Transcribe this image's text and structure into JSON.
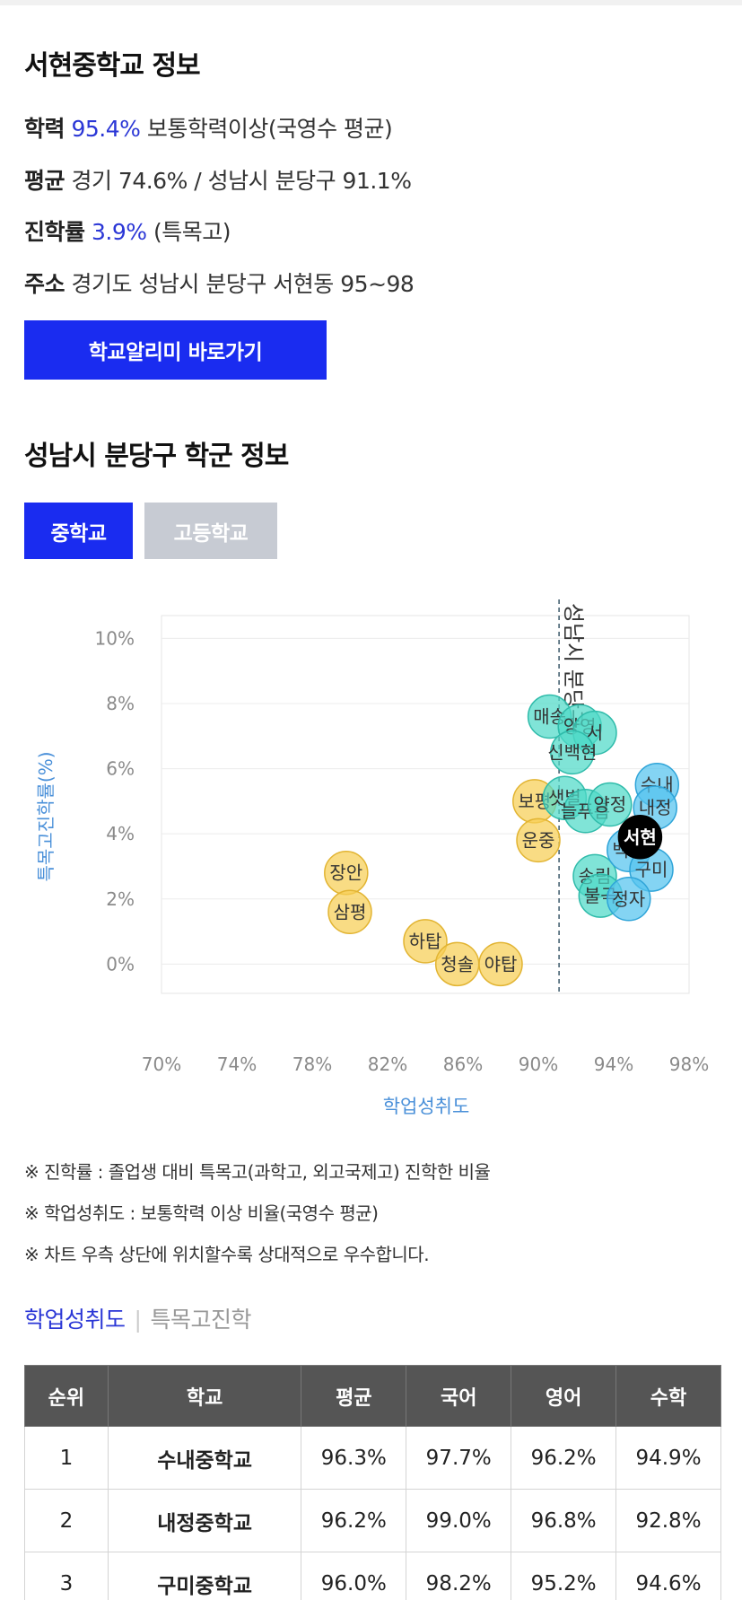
{
  "school_info": {
    "title": "서현중학교 정보",
    "ability": {
      "label": "학력",
      "value": "95.4%",
      "desc": "보통학력이상(국영수 평균)"
    },
    "average": {
      "label": "평균",
      "desc": "경기 74.6% / 성남시 분당구 91.1%"
    },
    "advance": {
      "label": "진학률",
      "value": "3.9%",
      "desc": "(특목고)"
    },
    "address": {
      "label": "주소",
      "desc": "경기도 성남시 분당구 서현동 95~98"
    },
    "button": "학교알리미 바로가기"
  },
  "district": {
    "title": "성남시 분당구 학군 정보",
    "tabs": [
      "중학교",
      "고등학교"
    ],
    "active_tab": "중학교"
  },
  "colors": {
    "accent": "#1a2cf0",
    "yellow": "#f5c842",
    "teal": "#3ecfc0",
    "blue": "#45b6e6",
    "selected": "#000000"
  },
  "chart_data": {
    "type": "scatter",
    "xlabel": "학업성취도",
    "ylabel": "특목고진학률(%)",
    "xlim": [
      70,
      98
    ],
    "ylim": [
      0,
      10
    ],
    "x_ticks": [
      "70%",
      "74%",
      "78%",
      "82%",
      "86%",
      "90%",
      "94%",
      "98%"
    ],
    "y_ticks": [
      "10%",
      "8%",
      "6%",
      "4%",
      "2%",
      "0%"
    ],
    "reference_line": {
      "x": 91.1,
      "label": "성남시 분당구"
    },
    "points": [
      {
        "name": "장안",
        "x": 79.8,
        "y": 2.8,
        "group": "below"
      },
      {
        "name": "삼평",
        "x": 80.0,
        "y": 1.6,
        "group": "below"
      },
      {
        "name": "하탑",
        "x": 84.0,
        "y": 0.7,
        "group": "below"
      },
      {
        "name": "청솔",
        "x": 85.7,
        "y": 0.0,
        "group": "below"
      },
      {
        "name": "야탑",
        "x": 88.0,
        "y": 0.0,
        "group": "below"
      },
      {
        "name": "보평",
        "x": 89.8,
        "y": 5.0,
        "group": "below"
      },
      {
        "name": "운중",
        "x": 90.0,
        "y": 3.8,
        "group": "below"
      },
      {
        "name": "매송",
        "x": 90.6,
        "y": 7.6,
        "group": "mid"
      },
      {
        "name": "양영",
        "x": 92.2,
        "y": 7.3,
        "group": "mid"
      },
      {
        "name": "서",
        "x": 93.0,
        "y": 7.1,
        "group": "mid"
      },
      {
        "name": "신백현",
        "x": 91.8,
        "y": 6.5,
        "group": "mid"
      },
      {
        "name": "샛별",
        "x": 91.4,
        "y": 5.1,
        "group": "mid"
      },
      {
        "name": "늘푸름",
        "x": 92.5,
        "y": 4.7,
        "group": "mid"
      },
      {
        "name": "양정",
        "x": 93.8,
        "y": 4.9,
        "group": "mid"
      },
      {
        "name": "송림",
        "x": 93.0,
        "y": 2.7,
        "group": "mid"
      },
      {
        "name": "불곡",
        "x": 93.3,
        "y": 2.1,
        "group": "mid"
      },
      {
        "name": "수내",
        "x": 96.3,
        "y": 5.5,
        "group": "top"
      },
      {
        "name": "내정",
        "x": 96.2,
        "y": 4.8,
        "group": "top"
      },
      {
        "name": "백현",
        "x": 94.8,
        "y": 3.5,
        "group": "top"
      },
      {
        "name": "구미",
        "x": 96.0,
        "y": 2.9,
        "group": "top"
      },
      {
        "name": "정자",
        "x": 94.8,
        "y": 2.0,
        "group": "top"
      },
      {
        "name": "서현",
        "x": 95.4,
        "y": 3.9,
        "group": "selected"
      }
    ]
  },
  "notes": [
    "※ 진학률 : 졸업생 대비 특목고(과학고, 외고국제고) 진학한 비율",
    "※ 학업성취도 : 보통학력 이상 비율(국영수 평균)",
    "※ 차트 우측 상단에 위치할수록 상대적으로 우수합니다."
  ],
  "subtabs": {
    "active": "학업성취도",
    "separator": "|",
    "inactive": "특목고진학"
  },
  "ranking_table": {
    "headers": [
      "순위",
      "학교",
      "평균",
      "국어",
      "영어",
      "수학"
    ],
    "rows": [
      [
        "1",
        "수내중학교",
        "96.3%",
        "97.7%",
        "96.2%",
        "94.9%"
      ],
      [
        "2",
        "내정중학교",
        "96.2%",
        "99.0%",
        "96.8%",
        "92.8%"
      ],
      [
        "3",
        "구미중학교",
        "96.0%",
        "98.2%",
        "95.2%",
        "94.6%"
      ]
    ]
  }
}
